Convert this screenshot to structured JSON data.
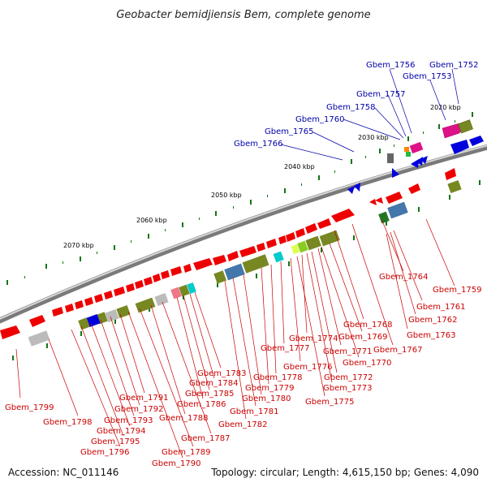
{
  "title": "Geobacter bemidjiensis Bem, complete genome",
  "footer": {
    "accession": "Accession: NC_011146",
    "topology": "Topology: circular; Length: 4,615,150 bp; Genes: 4,090"
  },
  "scale_labels": [
    "2020 kbp",
    "2030 kbp",
    "2040 kbp",
    "2050 kbp",
    "2060 kbp",
    "2070 kbp"
  ],
  "top_labels": [
    "Gbem_1752",
    "Gbem_1753",
    "Gbem_1756",
    "Gbem_1757",
    "Gbem_1758",
    "Gbem_1760",
    "Gbem_1765",
    "Gbem_1766"
  ],
  "bottom_labels": [
    "Gbem_1759",
    "Gbem_1761",
    "Gbem_1762",
    "Gbem_1763",
    "Gbem_1764",
    "Gbem_1767",
    "Gbem_1768",
    "Gbem_1769",
    "Gbem_1770",
    "Gbem_1771",
    "Gbem_1772",
    "Gbem_1773",
    "Gbem_1774",
    "Gbem_1775",
    "Gbem_1776",
    "Gbem_1777",
    "Gbem_1778",
    "Gbem_1779",
    "Gbem_1780",
    "Gbem_1781",
    "Gbem_1782",
    "Gbem_1783",
    "Gbem_1784",
    "Gbem_1785",
    "Gbem_1786",
    "Gbem_1787",
    "Gbem_1788",
    "Gbem_1789",
    "Gbem_1790",
    "Gbem_1791",
    "Gbem_1792",
    "Gbem_1793",
    "Gbem_1794",
    "Gbem_1795",
    "Gbem_1796",
    "Gbem_1798",
    "Gbem_1799"
  ],
  "colors": {
    "forward_gene": "#ee0000",
    "reverse_gene": "#0000ee",
    "label_top": "#0000aa",
    "label_bottom": "#cc0000",
    "backbone": "#888888",
    "tick": "#117711"
  }
}
